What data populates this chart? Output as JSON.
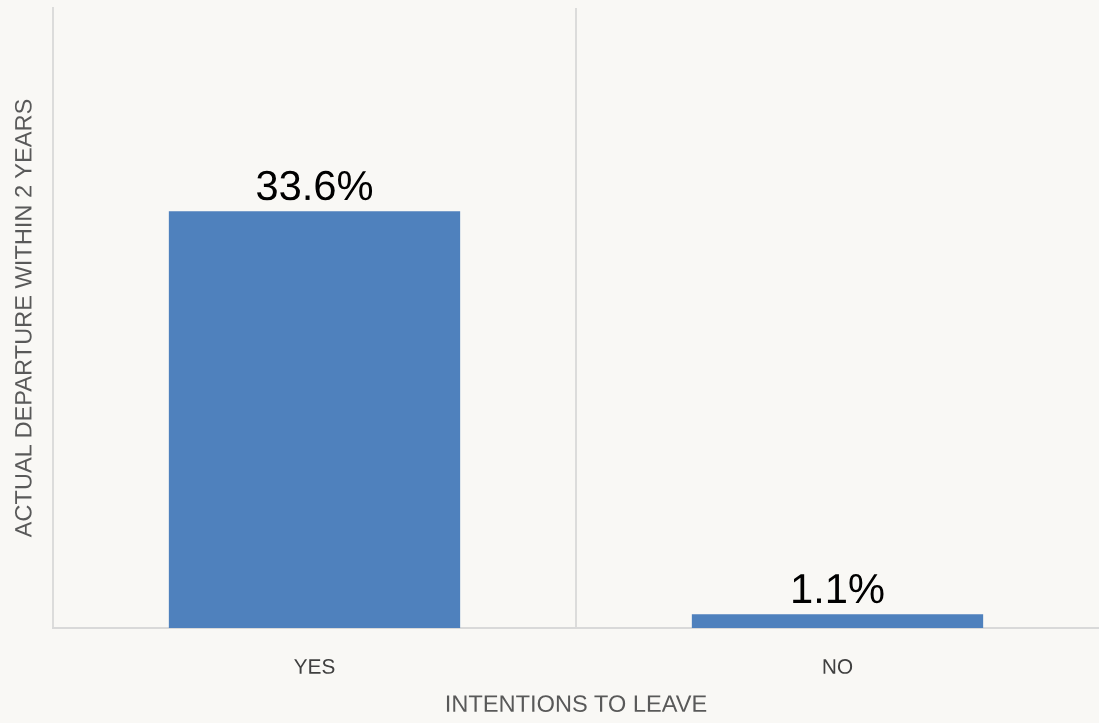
{
  "chart_data": {
    "type": "bar",
    "xlabel": "INTENTIONS TO LEAVE",
    "ylabel": "ACTUAL DEPARTURE WITHIN 2 YEARS",
    "categories": [
      "YES",
      "NO"
    ],
    "values": [
      33.6,
      1.1
    ],
    "value_labels": [
      "33.6%",
      "1.1%"
    ],
    "color": "#4f81bd",
    "ylim": [
      0,
      50
    ],
    "tick_labels": "x",
    "grid": "x"
  }
}
